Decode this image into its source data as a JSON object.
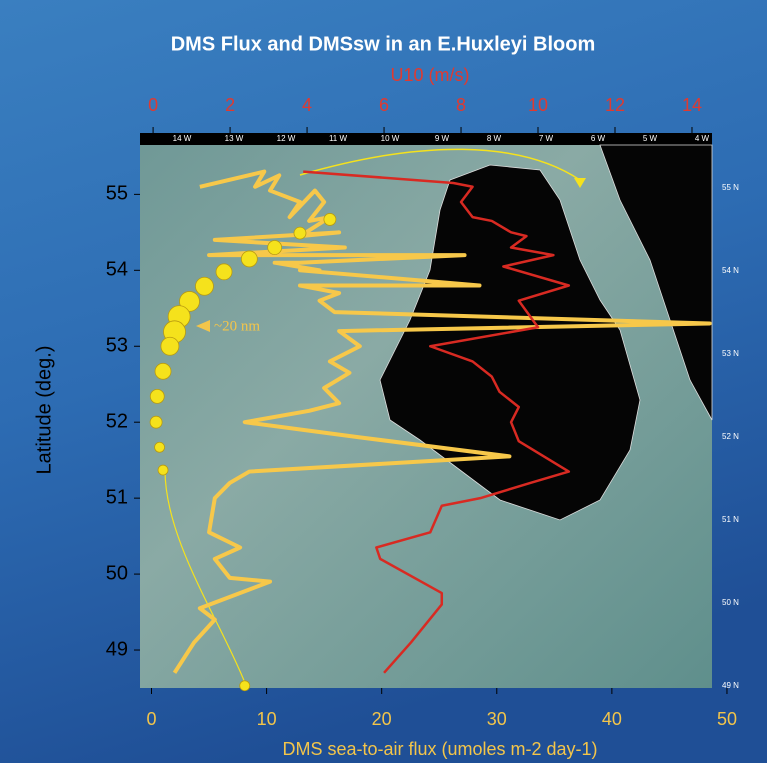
{
  "chart_data": {
    "type": "line",
    "title": "DMS Flux and DMSsw in an E.Huxleyi Bloom",
    "xlabel": "DMS sea-to-air flux (umoles m-2 day-1)",
    "x2label": "U10 (m/s)",
    "ylabel": "Latitude (deg.)",
    "annotation": "~20 nm",
    "xlim": [
      -1,
      48.7
    ],
    "xticks": [
      0,
      10,
      20,
      30,
      40,
      50
    ],
    "x2lim": [
      -0.34,
      14.52
    ],
    "x2ticks": [
      0,
      2,
      4,
      6,
      8,
      10,
      12,
      14
    ],
    "ylim": [
      48.5,
      55.65
    ],
    "yticks": [
      49,
      50,
      51,
      52,
      53,
      54,
      55
    ],
    "map_lon_labels": [
      "14 W",
      "13 W",
      "12 W",
      "11 W",
      "10 W",
      "9 W",
      "8 W",
      "7 W",
      "6 W",
      "5 W",
      "4 W"
    ],
    "map_lat_labels": [
      "55 N",
      "54 N",
      "53 N",
      "52 N",
      "51 N",
      "50 N",
      "49 N"
    ],
    "series": [
      {
        "type": "line",
        "color": "#f7c84a",
        "axis": "x",
        "x": [
          4.2,
          9.8,
          9.0,
          11.1,
          10.3,
          12.9,
          12.0,
          14.2,
          15.0,
          13.7,
          15.5,
          12.9,
          16.3,
          5.5,
          16.8,
          5.0,
          27.2,
          12.9,
          10.7,
          14.6,
          12.9,
          28.5,
          12.9,
          16.3,
          14.6,
          15.9,
          48.5,
          16.3,
          18.1,
          15.5,
          17.2,
          15.0,
          16.3,
          13.7,
          8.1,
          18.1,
          31.1,
          8.5,
          6.8,
          5.5,
          5.0,
          7.7,
          5.5,
          6.8,
          10.3,
          4.2,
          5.5,
          3.7,
          2.0
        ],
        "y": [
          55.1,
          55.3,
          55.1,
          55.25,
          55.05,
          54.9,
          54.7,
          55.05,
          54.9,
          54.65,
          54.7,
          54.45,
          54.5,
          54.4,
          54.3,
          54.2,
          54.2,
          54.1,
          54.1,
          54.0,
          54.0,
          53.8,
          53.8,
          53.7,
          53.6,
          53.45,
          53.3,
          53.2,
          53.0,
          52.8,
          52.65,
          52.45,
          52.25,
          52.15,
          52.0,
          51.8,
          51.55,
          51.35,
          51.2,
          51.0,
          50.55,
          50.35,
          50.2,
          49.95,
          49.9,
          49.55,
          49.4,
          49.1,
          48.7
        ]
      },
      {
        "type": "line",
        "color": "#d82a22",
        "axis": "x2",
        "x": [
          3.9,
          7.8,
          8.3,
          8.0,
          8.3,
          8.8,
          9.3,
          9.7,
          9.3,
          10.4,
          9.1,
          10.8,
          9.5,
          10.0,
          7.2,
          8.3,
          8.8,
          9.0,
          9.5,
          9.3,
          9.5,
          10.8,
          9.8,
          8.5,
          7.5,
          7.2,
          5.8,
          5.9,
          7.5,
          7.5,
          6.7,
          6.0
        ],
        "y": [
          55.3,
          55.15,
          55.1,
          54.9,
          54.7,
          54.65,
          54.5,
          54.45,
          54.3,
          54.2,
          54.05,
          53.8,
          53.6,
          53.25,
          53.0,
          52.8,
          52.6,
          52.4,
          52.2,
          52.0,
          51.75,
          51.35,
          51.2,
          51.0,
          50.9,
          50.55,
          50.35,
          50.2,
          49.75,
          49.6,
          49.1,
          48.7
        ]
      },
      {
        "type": "scatter",
        "color": "#f5e21c",
        "axis": "x",
        "x": [
          15.5,
          12.9,
          10.7,
          8.5,
          6.3,
          4.6,
          3.3,
          2.4,
          2.0,
          1.6,
          1.0,
          0.5,
          0.4,
          0.7,
          1.0,
          8.1
        ],
        "y": [
          54.67,
          54.49,
          54.3,
          54.15,
          53.98,
          53.79,
          53.59,
          53.39,
          53.19,
          53.0,
          52.67,
          52.34,
          52.0,
          51.67,
          51.37,
          48.53
        ],
        "sizes": [
          6,
          6,
          7,
          8,
          8,
          9,
          10,
          11,
          11,
          9,
          8,
          7,
          6,
          5,
          5,
          5
        ]
      }
    ]
  }
}
